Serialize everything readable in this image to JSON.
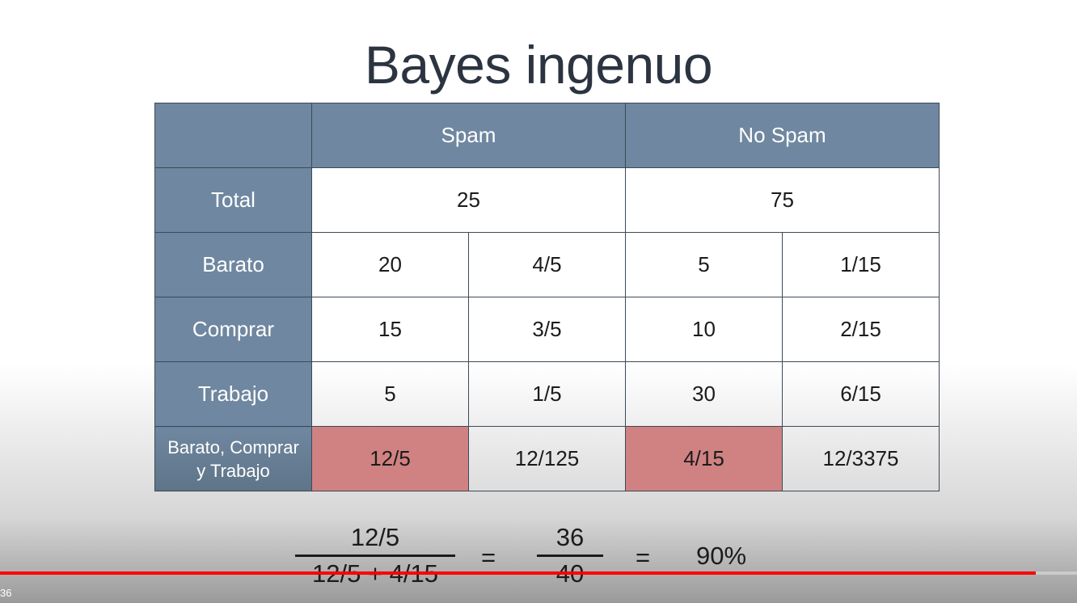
{
  "slide": {
    "title": "Bayes ingenuo",
    "table": {
      "columns": [
        "Spam",
        "No Spam"
      ],
      "total": {
        "label": "Total",
        "values": [
          "25",
          "75"
        ]
      },
      "rows": [
        {
          "label": "Barato",
          "cells": [
            "20",
            "4/5",
            "5",
            "1/15"
          ]
        },
        {
          "label": "Comprar",
          "cells": [
            "15",
            "3/5",
            "10",
            "2/15"
          ]
        },
        {
          "label": "Trabajo",
          "cells": [
            "5",
            "1/5",
            "30",
            "6/15"
          ]
        }
      ],
      "combined": {
        "label_line1": "Barato, Comprar",
        "label_line2": "y Trabajo",
        "cells": [
          "12/5",
          "12/125",
          "4/15",
          "12/3375"
        ]
      }
    },
    "formula": {
      "frac1_num": "12/5",
      "frac1_den": "12/5 + 4/15",
      "eq": "=",
      "frac2_num": "36",
      "frac2_den": "40",
      "result": "90%"
    },
    "colors": {
      "header_bg": "#6f87a0",
      "highlight_bg": "#d08282",
      "text": "#2b3440"
    }
  },
  "player": {
    "time": "36",
    "progress": 0.962
  }
}
